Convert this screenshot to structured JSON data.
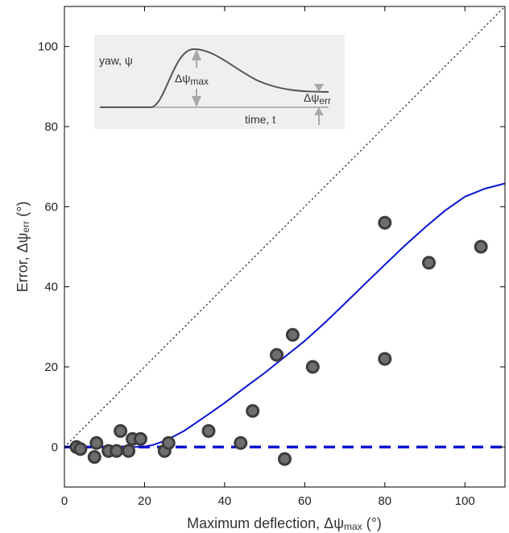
{
  "chart_data": {
    "type": "scatter",
    "xlim": [
      0,
      110
    ],
    "ylim": [
      -10,
      110
    ],
    "x_ticks": [
      0,
      20,
      40,
      60,
      80,
      100
    ],
    "y_ticks": [
      0,
      20,
      40,
      60,
      80,
      100
    ],
    "x_tick_labels": [
      "0",
      "20",
      "40",
      "60",
      "80",
      "100"
    ],
    "y_tick_labels": [
      "0",
      "20",
      "40",
      "60",
      "80",
      "100"
    ],
    "xlabel": {
      "prefix": "Maximum deflection, Δψ",
      "sub": "max",
      "suffix": " (°)"
    },
    "ylabel": {
      "prefix": "Error, Δψ",
      "sub": "err",
      "suffix": " (°)"
    },
    "grid": false,
    "points": [
      {
        "x": 3,
        "y": 0
      },
      {
        "x": 4,
        "y": -0.5
      },
      {
        "x": 7.5,
        "y": -2.5
      },
      {
        "x": 8,
        "y": 1
      },
      {
        "x": 11,
        "y": -1
      },
      {
        "x": 13,
        "y": -1
      },
      {
        "x": 14,
        "y": 4
      },
      {
        "x": 16,
        "y": -1
      },
      {
        "x": 17,
        "y": 2
      },
      {
        "x": 19,
        "y": 2
      },
      {
        "x": 25,
        "y": -1
      },
      {
        "x": 26,
        "y": 1
      },
      {
        "x": 36,
        "y": 4
      },
      {
        "x": 44,
        "y": 1
      },
      {
        "x": 47,
        "y": 9
      },
      {
        "x": 53,
        "y": 23
      },
      {
        "x": 55,
        "y": -3
      },
      {
        "x": 57,
        "y": 28
      },
      {
        "x": 62,
        "y": 20
      },
      {
        "x": 80,
        "y": 56
      },
      {
        "x": 80,
        "y": 22
      },
      {
        "x": 91,
        "y": 46
      },
      {
        "x": 104,
        "y": 50
      }
    ],
    "fit_curve": {
      "x": [
        0,
        10,
        18,
        20,
        22,
        25,
        28,
        30,
        35,
        40,
        45,
        50,
        55,
        60,
        65,
        70,
        75,
        80,
        85,
        90,
        95,
        100,
        105,
        110
      ],
      "y": [
        0,
        0,
        0,
        0.1,
        0.5,
        1.5,
        3,
        4.1,
        7.5,
        11,
        14.8,
        18.5,
        22.5,
        26.5,
        31,
        35.8,
        40.7,
        45.5,
        50.3,
        54.8,
        59,
        62.5,
        64.5,
        65.8
      ],
      "color": "#0a14d2"
    },
    "zero_line": {
      "y": 0,
      "color": "#0a14d2",
      "style": "dashed"
    },
    "identity_line": {
      "x": [
        0,
        110
      ],
      "y": [
        0,
        110
      ],
      "style": "dotted",
      "color": "#333333"
    },
    "marker": {
      "fill": "#6e6e6e",
      "stroke": "#3c3c3c"
    },
    "inset": {
      "yaw_label": "yaw, ψ",
      "time_label": "time, t",
      "max_label": {
        "prefix": "Δψ",
        "sub": "max"
      },
      "err_label": {
        "prefix": "Δψ",
        "sub": "err"
      },
      "background": "#efefef"
    }
  }
}
